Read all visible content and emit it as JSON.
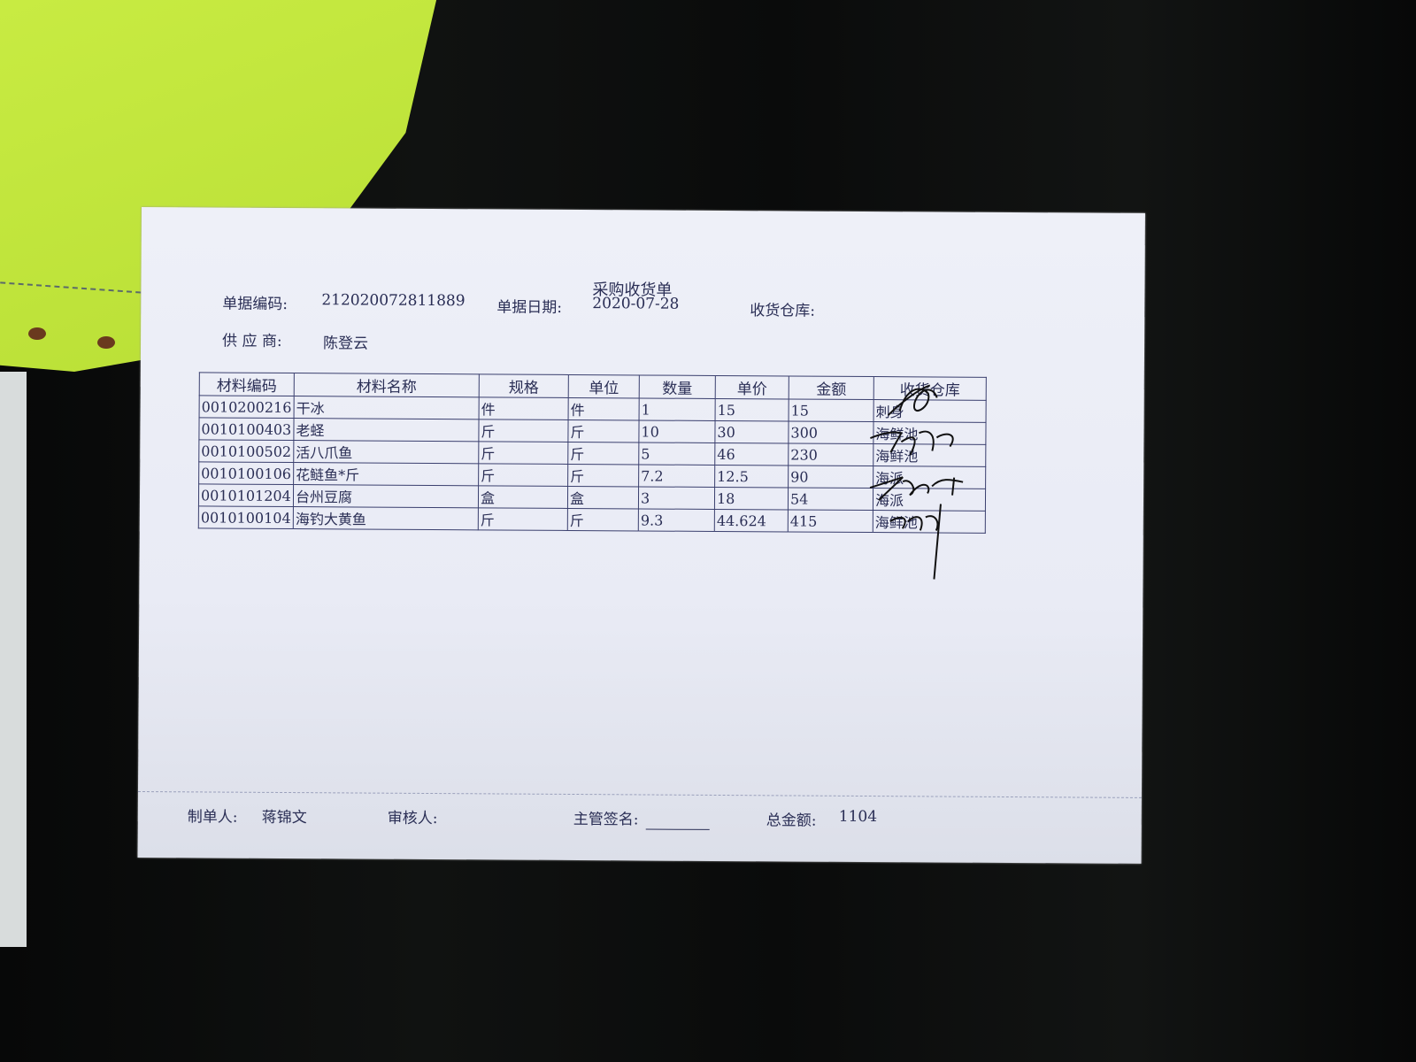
{
  "document": {
    "title": "采购收货单",
    "fields": {
      "doc_no_label": "单据编码:",
      "doc_no": "212020072811889",
      "date_label": "单据日期:",
      "date": "2020-07-28",
      "warehouse_label": "收货仓库:",
      "supplier_label": "供 应 商:",
      "supplier": "陈登云"
    },
    "table": {
      "headers": [
        "材料编码",
        "材料名称",
        "规格",
        "单位",
        "数量",
        "单价",
        "金额",
        "收货仓库"
      ],
      "rows": [
        [
          "0010200216",
          "干冰",
          "件",
          "件",
          "1",
          "15",
          "15",
          "刺身"
        ],
        [
          "0010100403",
          "老蛏",
          "斤",
          "斤",
          "10",
          "30",
          "300",
          "海鲜池"
        ],
        [
          "0010100502",
          "活八爪鱼",
          "斤",
          "斤",
          "5",
          "46",
          "230",
          "海鲜池"
        ],
        [
          "0010100106",
          "花鲢鱼*斤",
          "斤",
          "斤",
          "7.2",
          "12.5",
          "90",
          "海派"
        ],
        [
          "0010101204",
          "台州豆腐",
          "盒",
          "盒",
          "3",
          "18",
          "54",
          "海派"
        ],
        [
          "0010100104",
          "海钓大黄鱼",
          "斤",
          "斤",
          "9.3",
          "44.624",
          "415",
          "海鲜池"
        ]
      ]
    },
    "footer": {
      "maker_label": "制单人:",
      "maker": "蒋锦文",
      "reviewer_label": "审核人:",
      "supervisor_label": "主管签名:",
      "total_label": "总金额:",
      "total": "1104"
    }
  }
}
